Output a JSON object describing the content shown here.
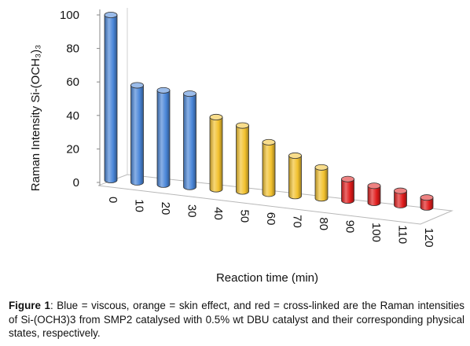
{
  "chart_data": {
    "type": "bar",
    "style": "3d-cylinder",
    "categories": [
      "0",
      "10",
      "20",
      "30",
      "40",
      "50",
      "60",
      "70",
      "80",
      "90",
      "100",
      "110",
      "120"
    ],
    "values": [
      100,
      58,
      55,
      53,
      39,
      34,
      24,
      16,
      9,
      2,
      -2,
      -5,
      -9
    ],
    "bar_colors": [
      "#4a86d8",
      "#4a86d8",
      "#4a86d8",
      "#4a86d8",
      "#f2c12e",
      "#f2c12e",
      "#f2c12e",
      "#f2c12e",
      "#f2c12e",
      "#e01c1c",
      "#e01c1c",
      "#e01c1c",
      "#e01c1c"
    ],
    "yticks": [
      "0",
      "20",
      "40",
      "60",
      "80",
      "100"
    ],
    "ylim": [
      0,
      100
    ],
    "xlabel": "Reaction time (min)",
    "ylabel": "Raman Intensity Si-(OCH₃)₃",
    "grid": false,
    "legend": "none"
  },
  "caption": {
    "label": "Figure 1",
    "text": ": Blue = viscous, orange = skin effect, and red = cross-linked are the Raman intensities of Si-(OCH3)3 from SMP2 catalysed with 0.5% wt DBU catalyst and their corresponding physical states, respectively."
  }
}
